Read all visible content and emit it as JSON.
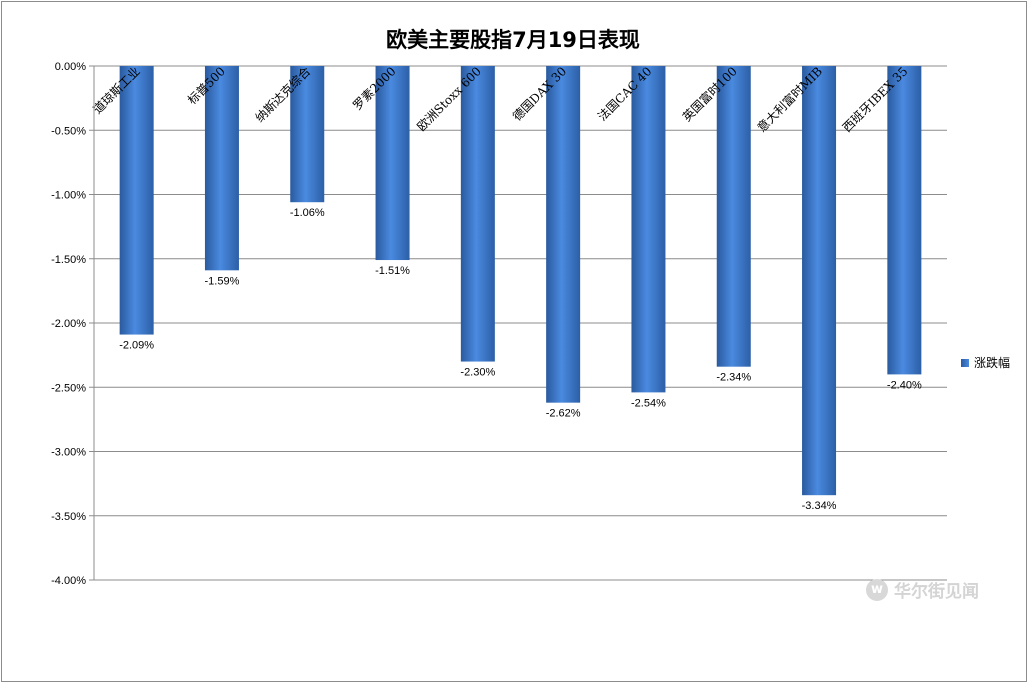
{
  "chart_data": {
    "type": "bar",
    "title": "欧美主要股指7月19日表现",
    "categories": [
      "道琼斯工业",
      "标普500",
      "纳斯达克综合",
      "罗素2000",
      "欧洲Stoxx 600",
      "德国DAX 30",
      "法国CAC 40",
      "英国富时100",
      "意大利富时MIB",
      "西班牙IBEX 35"
    ],
    "series": [
      {
        "name": "涨跌幅",
        "values": [
          -2.09,
          -1.59,
          -1.06,
          -1.51,
          -2.3,
          -2.62,
          -2.54,
          -2.34,
          -3.34,
          -2.4
        ],
        "labels": [
          "-2.09%",
          "-1.59%",
          "-1.06%",
          "-1.51%",
          "-2.30%",
          "-2.62%",
          "-2.54%",
          "-2.34%",
          "-3.34%",
          "-2.40%"
        ]
      }
    ],
    "yticks": [
      "0.00%",
      "-0.50%",
      "-1.00%",
      "-1.50%",
      "-2.00%",
      "-2.50%",
      "-3.00%",
      "-3.50%",
      "-4.00%"
    ],
    "ylim": [
      -4.0,
      0.0
    ],
    "grid": true,
    "legend_position": "right",
    "bar_color": "#3d79cc"
  },
  "watermark": {
    "icon": "wallstreetcn-logo-icon",
    "icon_glyph": "w",
    "text": "华尔街见闻"
  }
}
